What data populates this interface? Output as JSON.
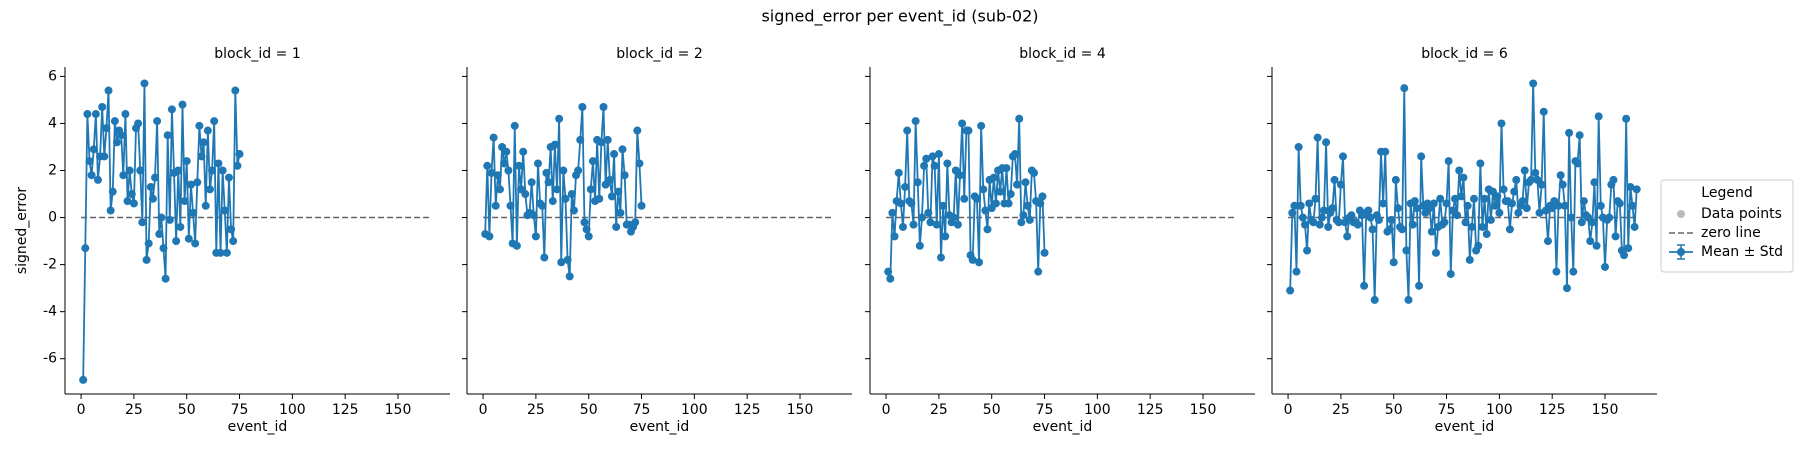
{
  "title": "signed_error per event_id (sub-02)",
  "legend": {
    "title": "Legend",
    "entries": [
      {
        "name": "Data points",
        "color": "#bbbbbb",
        "kind": "dot"
      },
      {
        "name": "zero line",
        "color": "#666666",
        "kind": "dash"
      },
      {
        "name": "Mean ± Std",
        "color": "#1f77b4",
        "kind": "errorbar"
      }
    ]
  },
  "chart_data": [
    {
      "type": "line",
      "title": "block_id = 1",
      "xlabel": "event_id",
      "ylabel": "signed_error",
      "color": "#1f77b4",
      "xlim": [
        -7.6,
        174.6
      ],
      "ylim": [
        -7.5,
        6.4
      ],
      "xticks": [
        0,
        25,
        50,
        75,
        100,
        125,
        150
      ],
      "yticks": [
        -6,
        -4,
        -2,
        0,
        2,
        4,
        6
      ],
      "zero_line": {
        "y": 0,
        "x": [
          0,
          165
        ]
      },
      "x": [
        1,
        2,
        3,
        4,
        5,
        6,
        7,
        8,
        9,
        10,
        11,
        12,
        13,
        14,
        15,
        16,
        17,
        18,
        19,
        20,
        21,
        22,
        23,
        24,
        25,
        26,
        27,
        28,
        29,
        30,
        31,
        32,
        33,
        34,
        35,
        36,
        37,
        38,
        39,
        40,
        41,
        42,
        43,
        44,
        45,
        46,
        47,
        48,
        49,
        50,
        51,
        52,
        53,
        54,
        55,
        56,
        57,
        58,
        59,
        60,
        61,
        62,
        63,
        64,
        65,
        66,
        67,
        68,
        69,
        70,
        71,
        72,
        73,
        74,
        75
      ],
      "values": [
        -6.9,
        -1.3,
        4.4,
        2.4,
        1.8,
        2.9,
        4.4,
        1.6,
        2.6,
        4.7,
        2.6,
        3.8,
        5.4,
        0.3,
        1.1,
        4.1,
        3.2,
        3.7,
        3.5,
        1.8,
        4.4,
        0.7,
        2.0,
        1.0,
        0.6,
        3.8,
        4.0,
        2.0,
        -0.2,
        5.7,
        -1.8,
        -1.1,
        1.3,
        0.8,
        1.7,
        4.1,
        -0.7,
        0.0,
        -1.3,
        -2.6,
        3.5,
        -0.1,
        4.6,
        1.9,
        -1.0,
        2.0,
        -0.4,
        4.8,
        0.7,
        2.4,
        -0.9,
        1.4,
        0.2,
        -1.1,
        1.5,
        3.9,
        2.6,
        3.2,
        0.5,
        3.7,
        1.2,
        2.0,
        4.1,
        -1.5,
        2.3,
        -1.5,
        2.0,
        0.3,
        -1.5,
        1.7,
        -0.5,
        -1.0,
        5.4,
        2.2,
        2.7
      ]
    },
    {
      "type": "line",
      "title": "block_id = 2",
      "xlabel": "event_id",
      "color": "#1f77b4",
      "xlim": [
        -7.6,
        174.6
      ],
      "ylim": [
        -7.5,
        6.4
      ],
      "xticks": [
        0,
        25,
        50,
        75,
        100,
        125,
        150
      ],
      "zero_line": {
        "y": 0,
        "x": [
          0,
          165
        ]
      },
      "x": [
        1,
        2,
        3,
        4,
        5,
        6,
        7,
        8,
        9,
        10,
        11,
        12,
        13,
        14,
        15,
        16,
        17,
        18,
        19,
        20,
        21,
        22,
        23,
        24,
        25,
        26,
        27,
        28,
        29,
        30,
        31,
        32,
        33,
        34,
        35,
        36,
        37,
        38,
        39,
        40,
        41,
        42,
        43,
        44,
        45,
        46,
        47,
        48,
        49,
        50,
        51,
        52,
        53,
        54,
        55,
        56,
        57,
        58,
        59,
        60,
        61,
        62,
        63,
        64,
        65,
        66,
        67,
        68,
        69,
        70,
        71,
        72,
        73,
        74,
        75
      ],
      "values": [
        -0.7,
        2.2,
        -0.8,
        1.9,
        3.4,
        0.5,
        1.8,
        1.2,
        3.0,
        2.3,
        2.8,
        2.0,
        0.5,
        -1.1,
        3.9,
        -1.2,
        2.2,
        1.2,
        2.8,
        1.0,
        0.1,
        0.2,
        1.5,
        0.1,
        -0.8,
        2.3,
        0.6,
        0.5,
        -1.7,
        1.9,
        1.5,
        3.0,
        0.7,
        3.1,
        1.2,
        4.2,
        -1.9,
        2.0,
        0.8,
        -1.8,
        -2.5,
        1.0,
        0.3,
        1.8,
        2.0,
        3.3,
        4.7,
        -0.2,
        -0.5,
        -0.8,
        1.2,
        2.4,
        0.7,
        3.3,
        0.8,
        3.2,
        4.7,
        1.4,
        3.3,
        1.6,
        0.9,
        2.7,
        -0.4,
        1.1,
        0.2,
        2.9,
        1.8,
        -0.3,
        -0.3,
        -0.6,
        -0.4,
        -0.2,
        3.7,
        2.3,
        0.5
      ]
    },
    {
      "type": "line",
      "title": "block_id = 4",
      "xlabel": "event_id",
      "color": "#1f77b4",
      "xlim": [
        -7.6,
        174.6
      ],
      "ylim": [
        -7.5,
        6.4
      ],
      "xticks": [
        0,
        25,
        50,
        75,
        100,
        125,
        150
      ],
      "zero_line": {
        "y": 0,
        "x": [
          0,
          165
        ]
      },
      "x": [
        1,
        2,
        3,
        4,
        5,
        6,
        7,
        8,
        9,
        10,
        11,
        12,
        13,
        14,
        15,
        16,
        17,
        18,
        19,
        20,
        21,
        22,
        23,
        24,
        25,
        26,
        27,
        28,
        29,
        30,
        31,
        32,
        33,
        34,
        35,
        36,
        37,
        38,
        39,
        40,
        41,
        42,
        43,
        44,
        45,
        46,
        47,
        48,
        49,
        50,
        51,
        52,
        53,
        54,
        55,
        56,
        57,
        58,
        59,
        60,
        61,
        62,
        63,
        64,
        65,
        66,
        67,
        68,
        69,
        70,
        71,
        72,
        73,
        74,
        75
      ],
      "values": [
        -2.3,
        -2.6,
        0.2,
        -0.8,
        0.7,
        1.9,
        0.6,
        -0.4,
        1.3,
        3.7,
        0.7,
        0.6,
        -0.3,
        4.1,
        1.5,
        -1.2,
        0.0,
        2.2,
        2.5,
        0.2,
        -0.2,
        2.6,
        2.2,
        -0.3,
        2.7,
        -1.7,
        0.5,
        -0.8,
        2.3,
        0.1,
        -0.2,
        0.0,
        2.0,
        -0.3,
        1.8,
        4.0,
        0.8,
        3.7,
        3.7,
        -1.6,
        -1.8,
        0.9,
        0.8,
        -1.9,
        3.9,
        1.2,
        0.3,
        -0.5,
        1.6,
        0.4,
        1.7,
        0.6,
        2.0,
        1.1,
        2.1,
        0.6,
        2.1,
        0.6,
        1.0,
        2.6,
        2.7,
        1.4,
        4.2,
        -0.2,
        0.1,
        1.5,
        0.5,
        -0.1,
        2.0,
        1.9,
        0.7,
        -2.3,
        0.6,
        0.9,
        -1.5
      ]
    },
    {
      "type": "line",
      "title": "block_id = 6",
      "xlabel": "event_id",
      "color": "#1f77b4",
      "xlim": [
        -7.6,
        174.6
      ],
      "ylim": [
        -7.5,
        6.4
      ],
      "xticks": [
        0,
        25,
        50,
        75,
        100,
        125,
        150
      ],
      "zero_line": {
        "y": 0,
        "x": [
          0,
          165
        ]
      },
      "x": [
        1,
        2,
        3,
        4,
        5,
        6,
        7,
        8,
        9,
        10,
        11,
        12,
        13,
        14,
        15,
        16,
        17,
        18,
        19,
        20,
        21,
        22,
        23,
        24,
        25,
        26,
        27,
        28,
        29,
        30,
        31,
        32,
        33,
        34,
        35,
        36,
        37,
        38,
        39,
        40,
        41,
        42,
        43,
        44,
        45,
        46,
        47,
        48,
        49,
        50,
        51,
        52,
        53,
        54,
        55,
        56,
        57,
        58,
        59,
        60,
        61,
        62,
        63,
        64,
        65,
        66,
        67,
        68,
        69,
        70,
        71,
        72,
        73,
        74,
        75,
        76,
        77,
        78,
        79,
        80,
        81,
        82,
        83,
        84,
        85,
        86,
        87,
        88,
        89,
        90,
        91,
        92,
        93,
        94,
        95,
        96,
        97,
        98,
        99,
        100,
        101,
        102,
        103,
        104,
        105,
        106,
        107,
        108,
        109,
        110,
        111,
        112,
        113,
        114,
        115,
        116,
        117,
        118,
        119,
        120,
        121,
        122,
        123,
        124,
        125,
        126,
        127,
        128,
        129,
        130,
        131,
        132,
        133,
        134,
        135,
        136,
        137,
        138,
        139,
        140,
        141,
        142,
        143,
        144,
        145,
        146,
        147,
        148,
        149,
        150,
        151,
        152,
        153,
        154,
        155,
        156,
        157,
        158,
        159,
        160,
        161,
        162,
        163,
        164,
        165
      ],
      "values": [
        -3.1,
        0.2,
        0.5,
        -2.3,
        3.0,
        0.5,
        0.0,
        -0.3,
        -1.4,
        0.6,
        -0.1,
        -0.2,
        0.8,
        3.4,
        -0.3,
        0.0,
        0.3,
        3.2,
        -0.4,
        0.2,
        0.4,
        1.6,
        -0.1,
        -0.2,
        1.4,
        2.6,
        -0.2,
        -0.8,
        0.0,
        0.1,
        -0.2,
        -0.2,
        -0.3,
        0.3,
        0.1,
        -2.9,
        0.2,
        0.3,
        0.0,
        -0.5,
        -3.5,
        0.1,
        -0.1,
        2.8,
        0.6,
        2.8,
        -0.6,
        -0.5,
        -0.1,
        -1.9,
        1.6,
        0.4,
        -0.4,
        -0.5,
        5.5,
        -1.4,
        -3.5,
        0.6,
        -0.3,
        0.7,
        0.4,
        -2.9,
        2.6,
        0.5,
        0.2,
        0.6,
        0.4,
        -0.6,
        0.6,
        -1.5,
        -0.4,
        0.8,
        -0.3,
        -0.2,
        0.6,
        2.4,
        -2.4,
        0.3,
        0.8,
        0.1,
        2.0,
        0.9,
        1.7,
        -0.2,
        0.5,
        -1.8,
        -0.4,
        0.8,
        -1.4,
        -1.2,
        2.3,
        -0.4,
        0.8,
        -0.7,
        1.2,
        -0.1,
        1.1,
        0.5,
        0.9,
        0.2,
        4.0,
        1.2,
        0.7,
        0.7,
        -0.5,
        0.6,
        1.1,
        1.6,
        0.2,
        0.5,
        0.7,
        2.0,
        0.4,
        1.5,
        1.6,
        5.7,
        1.9,
        1.6,
        0.2,
        1.4,
        4.5,
        0.3,
        -1.0,
        0.5,
        0.4,
        0.7,
        -2.3,
        0.5,
        1.8,
        1.4,
        0.5,
        -3.0,
        3.6,
        0.0,
        -2.3,
        2.4,
        2.3,
        3.5,
        -0.2,
        0.7,
        0.1,
        0.0,
        -1.0,
        -0.2,
        1.5,
        -1.2,
        4.3,
        0.5,
        0.0,
        -2.1,
        -0.1,
        0.0,
        1.4,
        1.6,
        -0.8,
        0.7,
        0.6,
        -1.4,
        -1.6,
        4.2,
        -1.3,
        1.3,
        0.5,
        -0.4,
        1.2
      ]
    }
  ]
}
